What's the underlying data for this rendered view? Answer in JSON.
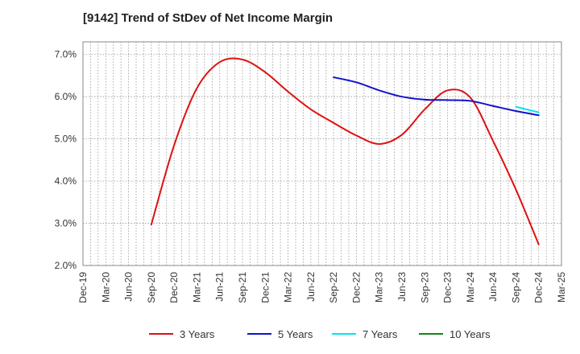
{
  "chart_data": {
    "type": "line",
    "title": "[9142]  Trend of StDev of Net Income Margin",
    "xlabel": "",
    "ylabel": "",
    "x_tick_labels": [
      "Dec-19",
      "Mar-20",
      "Jun-20",
      "Sep-20",
      "Dec-20",
      "Mar-21",
      "Jun-21",
      "Sep-21",
      "Dec-21",
      "Mar-22",
      "Jun-22",
      "Sep-22",
      "Dec-22",
      "Mar-23",
      "Jun-23",
      "Sep-23",
      "Dec-23",
      "Mar-24",
      "Jun-24",
      "Sep-24",
      "Dec-24",
      "Mar-25"
    ],
    "y_tick_labels": [
      "2.0%",
      "3.0%",
      "4.0%",
      "5.0%",
      "6.0%",
      "7.0%"
    ],
    "ylim": [
      2.0,
      7.3
    ],
    "y_ticks": [
      2,
      3,
      4,
      5,
      6,
      7
    ],
    "grid": true,
    "legend_position": "bottom",
    "series": [
      {
        "name": "3 Years",
        "color": "#dd1111",
        "x": [
          "Sep-20",
          "Dec-20",
          "Mar-21",
          "Jun-21",
          "Sep-21",
          "Dec-21",
          "Mar-22",
          "Jun-22",
          "Sep-22",
          "Dec-22",
          "Mar-23",
          "Jun-23",
          "Sep-23",
          "Dec-23",
          "Mar-24",
          "Jun-24",
          "Sep-24",
          "Dec-24"
        ],
        "values": [
          2.97,
          4.85,
          6.2,
          6.82,
          6.88,
          6.58,
          6.12,
          5.7,
          5.38,
          5.08,
          4.88,
          5.1,
          5.7,
          6.15,
          5.98,
          4.95,
          3.8,
          2.5
        ]
      },
      {
        "name": "5 Years",
        "color": "#1111cc",
        "x": [
          "Sep-22",
          "Dec-22",
          "Mar-23",
          "Jun-23",
          "Sep-23",
          "Dec-23",
          "Mar-24",
          "Jun-24",
          "Sep-24",
          "Dec-24"
        ],
        "values": [
          6.46,
          6.34,
          6.15,
          6.0,
          5.93,
          5.92,
          5.9,
          5.78,
          5.66,
          5.56
        ]
      },
      {
        "name": "7 Years",
        "color": "#00e5ee",
        "x": [
          "Sep-24",
          "Dec-24"
        ],
        "values": [
          5.76,
          5.63
        ]
      },
      {
        "name": "10 Years",
        "color": "#118811",
        "x": [],
        "values": []
      }
    ]
  }
}
